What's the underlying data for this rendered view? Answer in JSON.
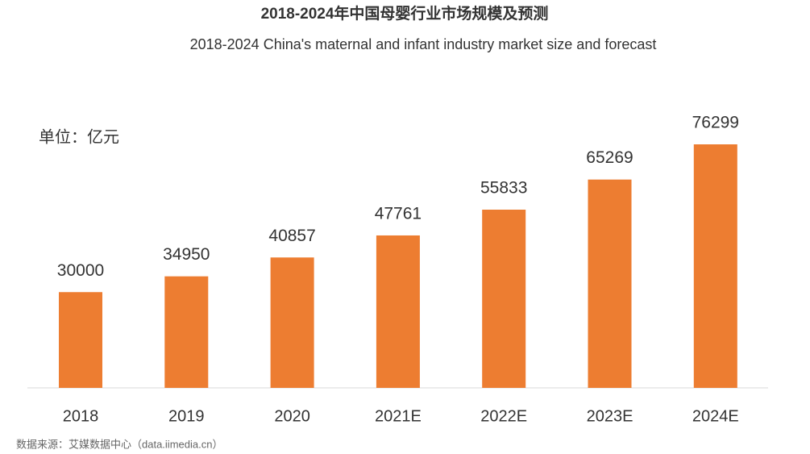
{
  "chart_data": {
    "type": "bar",
    "title": "2018-2024年中国母婴行业市场规模及预测",
    "subtitle": "2018-2024 China's maternal and infant industry market size and forecast",
    "unit_label": "单位：亿元",
    "source": "数据来源：艾媒数据中心（data.iimedia.cn）",
    "categories": [
      "2018",
      "2019",
      "2020",
      "2021E",
      "2022E",
      "2023E",
      "2024E"
    ],
    "values": [
      30000,
      34950,
      40857,
      47761,
      55833,
      65269,
      76299
    ],
    "color": "#ed7d31"
  }
}
